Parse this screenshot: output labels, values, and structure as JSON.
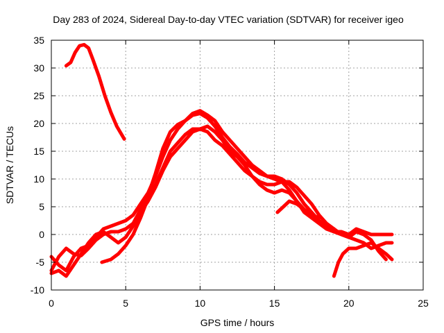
{
  "chart_data": {
    "type": "line",
    "title": "Day 283 of 2024, Sidereal Day-to-day VTEC variation (SDTVAR) for receiver igeo",
    "xlabel": "GPS time / hours",
    "ylabel": "SDTVAR / TECUs",
    "xlim": [
      0,
      25
    ],
    "ylim": [
      -10,
      35
    ],
    "xticks": [
      0,
      5,
      10,
      15,
      20,
      25
    ],
    "yticks": [
      -10,
      -5,
      0,
      5,
      10,
      15,
      20,
      25,
      30,
      35
    ],
    "grid": true,
    "legend": "none",
    "series_color": "#ff0000",
    "series": [
      {
        "name": "track-early-peak",
        "points": [
          [
            1.0,
            30.4
          ],
          [
            1.3,
            31.0
          ],
          [
            1.6,
            32.8
          ],
          [
            1.9,
            34.0
          ],
          [
            2.2,
            34.2
          ],
          [
            2.5,
            33.6
          ],
          [
            2.8,
            31.5
          ],
          [
            3.2,
            28.5
          ],
          [
            3.6,
            25.0
          ],
          [
            4.0,
            22.0
          ],
          [
            4.4,
            19.5
          ],
          [
            4.9,
            17.2
          ]
        ]
      },
      {
        "name": "track-main-a",
        "points": [
          [
            0.0,
            -4.0
          ],
          [
            0.5,
            -5.5
          ],
          [
            1.0,
            -6.5
          ],
          [
            1.5,
            -4.0
          ],
          [
            2.0,
            -2.5
          ],
          [
            2.5,
            -2.0
          ],
          [
            3.0,
            -0.5
          ],
          [
            3.5,
            1.0
          ],
          [
            4.0,
            1.5
          ],
          [
            4.5,
            2.0
          ],
          [
            5.0,
            2.5
          ],
          [
            5.5,
            3.5
          ],
          [
            6.0,
            5.5
          ],
          [
            6.5,
            7.5
          ],
          [
            7.0,
            10.5
          ],
          [
            7.5,
            14.0
          ],
          [
            8.0,
            17.0
          ],
          [
            8.5,
            19.0
          ],
          [
            9.0,
            20.5
          ],
          [
            9.5,
            21.8
          ],
          [
            10.0,
            22.3
          ],
          [
            10.5,
            21.5
          ],
          [
            11.0,
            20.5
          ],
          [
            11.5,
            18.5
          ],
          [
            12.0,
            17.0
          ],
          [
            12.5,
            15.5
          ],
          [
            13.0,
            14.0
          ],
          [
            13.5,
            12.5
          ],
          [
            14.0,
            11.5
          ],
          [
            14.5,
            10.5
          ],
          [
            15.0,
            10.0
          ],
          [
            15.5,
            9.5
          ],
          [
            16.0,
            8.0
          ],
          [
            16.5,
            6.0
          ],
          [
            17.0,
            4.0
          ],
          [
            17.5,
            3.0
          ],
          [
            18.0,
            2.0
          ],
          [
            18.5,
            1.0
          ],
          [
            19.0,
            0.5
          ],
          [
            19.5,
            0.0
          ],
          [
            20.0,
            -0.5
          ],
          [
            20.5,
            0.5
          ],
          [
            21.0,
            0.0
          ],
          [
            21.5,
            -1.0
          ],
          [
            22.0,
            -3.0
          ],
          [
            22.5,
            -4.5
          ]
        ]
      },
      {
        "name": "track-main-b",
        "points": [
          [
            0.0,
            -6.5
          ],
          [
            0.5,
            -4.0
          ],
          [
            1.0,
            -2.5
          ],
          [
            1.5,
            -3.5
          ],
          [
            2.0,
            -3.8
          ],
          [
            2.5,
            -2.5
          ],
          [
            3.0,
            -1.0
          ],
          [
            3.5,
            0.0
          ],
          [
            4.0,
            0.5
          ],
          [
            4.5,
            0.5
          ],
          [
            5.0,
            1.0
          ],
          [
            5.5,
            2.0
          ],
          [
            6.0,
            4.5
          ],
          [
            6.5,
            7.0
          ],
          [
            7.0,
            11.0
          ],
          [
            7.5,
            15.5
          ],
          [
            8.0,
            18.5
          ],
          [
            8.5,
            19.8
          ],
          [
            9.0,
            20.5
          ],
          [
            9.5,
            21.5
          ],
          [
            10.0,
            21.8
          ],
          [
            10.5,
            21.0
          ],
          [
            11.0,
            19.5
          ],
          [
            11.5,
            17.5
          ],
          [
            12.0,
            15.8
          ],
          [
            12.5,
            14.5
          ],
          [
            13.0,
            13.0
          ],
          [
            13.5,
            12.0
          ],
          [
            14.0,
            11.0
          ],
          [
            14.5,
            10.5
          ],
          [
            15.0,
            10.5
          ],
          [
            15.5,
            10.0
          ],
          [
            16.0,
            9.0
          ],
          [
            16.5,
            7.5
          ],
          [
            17.0,
            5.5
          ],
          [
            17.5,
            4.0
          ],
          [
            18.0,
            2.5
          ],
          [
            18.5,
            1.5
          ],
          [
            19.0,
            0.5
          ],
          [
            19.5,
            0.5
          ],
          [
            20.0,
            0.0
          ],
          [
            20.5,
            1.0
          ],
          [
            21.0,
            0.5
          ],
          [
            21.5,
            0.0
          ],
          [
            22.0,
            0.0
          ],
          [
            22.5,
            0.0
          ],
          [
            22.9,
            0.0
          ]
        ]
      },
      {
        "name": "track-main-c",
        "points": [
          [
            0.0,
            -7.0
          ],
          [
            0.5,
            -6.5
          ],
          [
            1.0,
            -7.5
          ],
          [
            1.5,
            -5.5
          ],
          [
            2.0,
            -3.5
          ],
          [
            2.5,
            -1.5
          ],
          [
            3.0,
            0.0
          ],
          [
            3.5,
            0.5
          ],
          [
            4.0,
            -0.5
          ],
          [
            4.5,
            -1.5
          ],
          [
            5.0,
            -0.5
          ],
          [
            5.5,
            1.5
          ],
          [
            6.0,
            4.0
          ],
          [
            6.5,
            6.0
          ],
          [
            7.0,
            8.5
          ],
          [
            7.5,
            11.5
          ],
          [
            8.0,
            14.0
          ],
          [
            8.5,
            15.5
          ],
          [
            9.0,
            17.0
          ],
          [
            9.5,
            18.5
          ],
          [
            10.0,
            19.0
          ],
          [
            10.5,
            19.5
          ],
          [
            11.0,
            18.5
          ],
          [
            11.5,
            17.0
          ],
          [
            12.0,
            15.0
          ],
          [
            12.5,
            14.0
          ],
          [
            13.0,
            12.5
          ],
          [
            13.5,
            10.5
          ],
          [
            14.0,
            9.0
          ],
          [
            14.5,
            8.0
          ],
          [
            15.0,
            7.5
          ],
          [
            15.5,
            8.0
          ],
          [
            16.0,
            7.5
          ],
          [
            16.5,
            6.0
          ],
          [
            17.0,
            4.5
          ],
          [
            17.5,
            3.5
          ],
          [
            18.0,
            2.5
          ],
          [
            18.5,
            1.5
          ],
          [
            19.0,
            1.0
          ],
          [
            19.5,
            0.0
          ],
          [
            20.0,
            -0.5
          ],
          [
            20.5,
            -1.0
          ],
          [
            21.0,
            -1.5
          ],
          [
            21.5,
            -2.5
          ],
          [
            22.0,
            -2.0
          ],
          [
            22.5,
            -1.5
          ],
          [
            22.9,
            -1.5
          ]
        ]
      },
      {
        "name": "track-late-d",
        "points": [
          [
            3.4,
            -5.0
          ],
          [
            4.0,
            -4.5
          ],
          [
            4.5,
            -3.5
          ],
          [
            5.0,
            -2.0
          ],
          [
            5.5,
            0.0
          ],
          [
            6.0,
            3.0
          ],
          [
            6.5,
            6.5
          ],
          [
            7.0,
            9.0
          ],
          [
            7.5,
            12.0
          ],
          [
            8.0,
            15.0
          ],
          [
            8.5,
            16.5
          ],
          [
            9.0,
            18.0
          ],
          [
            9.5,
            19.0
          ],
          [
            10.0,
            19.0
          ],
          [
            10.5,
            18.5
          ],
          [
            11.0,
            17.0
          ],
          [
            11.5,
            16.0
          ],
          [
            12.0,
            14.5
          ],
          [
            12.5,
            13.0
          ],
          [
            13.0,
            11.5
          ],
          [
            13.5,
            10.5
          ],
          [
            14.0,
            9.5
          ],
          [
            14.5,
            9.0
          ],
          [
            15.0,
            9.0
          ],
          [
            15.5,
            9.5
          ],
          [
            16.0,
            9.5
          ],
          [
            16.5,
            8.5
          ],
          [
            17.0,
            7.0
          ],
          [
            17.5,
            5.5
          ],
          [
            18.0,
            3.5
          ],
          [
            18.5,
            2.0
          ],
          [
            19.0,
            1.0
          ]
        ]
      },
      {
        "name": "track-short-e",
        "points": [
          [
            15.2,
            4.0
          ],
          [
            15.6,
            5.0
          ],
          [
            16.0,
            6.0
          ],
          [
            16.5,
            5.5
          ],
          [
            17.0,
            4.5
          ],
          [
            17.5,
            3.5
          ],
          [
            18.0,
            3.0
          ]
        ]
      },
      {
        "name": "track-tail-f",
        "points": [
          [
            19.0,
            -7.5
          ],
          [
            19.3,
            -5.0
          ],
          [
            19.6,
            -3.5
          ],
          [
            20.0,
            -2.5
          ],
          [
            20.5,
            -2.5
          ],
          [
            21.0,
            -2.0
          ],
          [
            21.5,
            -1.5
          ],
          [
            22.0,
            -2.5
          ],
          [
            22.5,
            -3.5
          ],
          [
            22.9,
            -4.5
          ]
        ]
      }
    ]
  }
}
